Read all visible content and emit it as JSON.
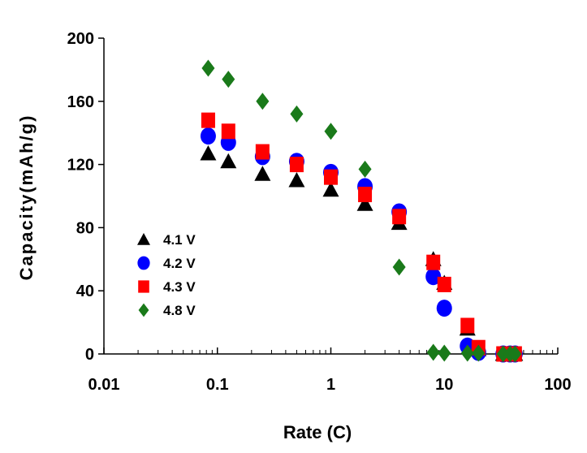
{
  "chart_data": {
    "type": "scatter",
    "title": "",
    "xlabel": "Rate (C)",
    "ylabel": "Capacity(mAh/g)",
    "xscale": "log",
    "xlim": [
      0.01,
      100
    ],
    "ylim": [
      0,
      200
    ],
    "x_ticks": [
      "0.01",
      "0.1",
      "1",
      "10",
      "100"
    ],
    "y_ticks": [
      "0",
      "40",
      "80",
      "120",
      "160",
      "200"
    ],
    "legend_position": "center-left",
    "series": [
      {
        "name": "4.1 V",
        "marker": "triangle",
        "color": "#000000",
        "points": [
          [
            0.083,
            127
          ],
          [
            0.125,
            122
          ],
          [
            0.25,
            114
          ],
          [
            0.5,
            110
          ],
          [
            1,
            104
          ],
          [
            2,
            95
          ],
          [
            4,
            83
          ],
          [
            8,
            60
          ],
          [
            10,
            45
          ],
          [
            16,
            16
          ],
          [
            20,
            3
          ],
          [
            33,
            0
          ],
          [
            38,
            0
          ],
          [
            42,
            0
          ]
        ]
      },
      {
        "name": "4.2 V",
        "marker": "circle",
        "color": "#0000ff",
        "points": [
          [
            0.083,
            138
          ],
          [
            0.125,
            134
          ],
          [
            0.25,
            125
          ],
          [
            0.5,
            122
          ],
          [
            1,
            115
          ],
          [
            2,
            106
          ],
          [
            4,
            90
          ],
          [
            8,
            49
          ],
          [
            10,
            29
          ],
          [
            16,
            5
          ],
          [
            20,
            1
          ],
          [
            33,
            0
          ],
          [
            38,
            0
          ],
          [
            42,
            0
          ]
        ]
      },
      {
        "name": "4.3 V",
        "marker": "square",
        "color": "#ff0000",
        "points": [
          [
            0.083,
            148
          ],
          [
            0.125,
            141
          ],
          [
            0.25,
            128
          ],
          [
            0.5,
            120
          ],
          [
            1,
            112
          ],
          [
            2,
            101
          ],
          [
            4,
            87
          ],
          [
            8,
            58
          ],
          [
            10,
            44
          ],
          [
            16,
            18
          ],
          [
            20,
            4
          ],
          [
            33,
            0
          ],
          [
            38,
            0
          ],
          [
            42,
            0
          ]
        ]
      },
      {
        "name": "4.8 V",
        "marker": "diamond",
        "color": "#1a7a1a",
        "points": [
          [
            0.083,
            181
          ],
          [
            0.125,
            174
          ],
          [
            0.25,
            160
          ],
          [
            0.5,
            152
          ],
          [
            1,
            141
          ],
          [
            2,
            117
          ],
          [
            4,
            55
          ],
          [
            8,
            1
          ],
          [
            10,
            0.5
          ],
          [
            16,
            0.5
          ],
          [
            20,
            0.5
          ],
          [
            33,
            0
          ],
          [
            38,
            0
          ],
          [
            42,
            0
          ]
        ]
      }
    ]
  }
}
